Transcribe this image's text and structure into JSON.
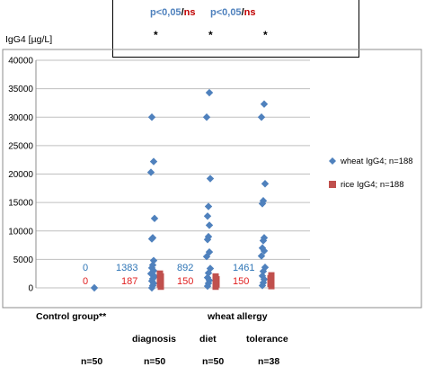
{
  "chart_data": {
    "type": "scatter",
    "ylabel": "IgG4 [µg/L]",
    "ylim": [
      0,
      40000
    ],
    "yticks": [
      0,
      5000,
      10000,
      15000,
      20000,
      25000,
      30000,
      35000,
      40000
    ],
    "grid": true,
    "legend_position": "right",
    "series": [
      {
        "name": "wheat IgG4; n=188",
        "color": "#4f81bd",
        "marker": "diamond",
        "points": [
          {
            "x": 1,
            "y": 0
          },
          {
            "x": 2,
            "y": 30000
          },
          {
            "x": 2,
            "y": 22200
          },
          {
            "x": 2,
            "y": 20300
          },
          {
            "x": 2,
            "y": 12200
          },
          {
            "x": 2,
            "y": 8800
          },
          {
            "x": 2,
            "y": 8600
          },
          {
            "x": 2,
            "y": 4800
          },
          {
            "x": 2,
            "y": 4000
          },
          {
            "x": 2,
            "y": 3500
          },
          {
            "x": 2,
            "y": 3000
          },
          {
            "x": 2,
            "y": 2500
          },
          {
            "x": 2,
            "y": 2000
          },
          {
            "x": 2,
            "y": 1600
          },
          {
            "x": 2,
            "y": 1200
          },
          {
            "x": 2,
            "y": 800
          },
          {
            "x": 2,
            "y": 400
          },
          {
            "x": 2,
            "y": 0
          },
          {
            "x": 3,
            "y": 34300
          },
          {
            "x": 3,
            "y": 30000
          },
          {
            "x": 3,
            "y": 19200
          },
          {
            "x": 3,
            "y": 14300
          },
          {
            "x": 3,
            "y": 12600
          },
          {
            "x": 3,
            "y": 11000
          },
          {
            "x": 3,
            "y": 9000
          },
          {
            "x": 3,
            "y": 8500
          },
          {
            "x": 3,
            "y": 6300
          },
          {
            "x": 3,
            "y": 5500
          },
          {
            "x": 3,
            "y": 3400
          },
          {
            "x": 3,
            "y": 2600
          },
          {
            "x": 3,
            "y": 1800
          },
          {
            "x": 3,
            "y": 1300
          },
          {
            "x": 3,
            "y": 800
          },
          {
            "x": 3,
            "y": 300
          },
          {
            "x": 4,
            "y": 32300
          },
          {
            "x": 4,
            "y": 30000
          },
          {
            "x": 4,
            "y": 18300
          },
          {
            "x": 4,
            "y": 15300
          },
          {
            "x": 4,
            "y": 14800
          },
          {
            "x": 4,
            "y": 8800
          },
          {
            "x": 4,
            "y": 8300
          },
          {
            "x": 4,
            "y": 7000
          },
          {
            "x": 4,
            "y": 6500
          },
          {
            "x": 4,
            "y": 5600
          },
          {
            "x": 4,
            "y": 3600
          },
          {
            "x": 4,
            "y": 2900
          },
          {
            "x": 4,
            "y": 2100
          },
          {
            "x": 4,
            "y": 1500
          },
          {
            "x": 4,
            "y": 900
          },
          {
            "x": 4,
            "y": 400
          }
        ]
      },
      {
        "name": "rice IgG4; n=188",
        "color": "#c0504d",
        "marker": "square",
        "points": [
          {
            "x": 2,
            "y": 2500
          },
          {
            "x": 2,
            "y": 2000
          },
          {
            "x": 2,
            "y": 1500
          },
          {
            "x": 2,
            "y": 1000
          },
          {
            "x": 2,
            "y": 600
          },
          {
            "x": 2,
            "y": 200
          },
          {
            "x": 3,
            "y": 2000
          },
          {
            "x": 3,
            "y": 1500
          },
          {
            "x": 3,
            "y": 1000
          },
          {
            "x": 3,
            "y": 600
          },
          {
            "x": 3,
            "y": 200
          },
          {
            "x": 4,
            "y": 2200
          },
          {
            "x": 4,
            "y": 1700
          },
          {
            "x": 4,
            "y": 1200
          },
          {
            "x": 4,
            "y": 700
          },
          {
            "x": 4,
            "y": 300
          }
        ]
      }
    ],
    "median_labels": [
      {
        "x": 1,
        "wheat": "0",
        "rice": "0"
      },
      {
        "x": 2,
        "wheat": "1383",
        "rice": "187"
      },
      {
        "x": 3,
        "wheat": "892",
        "rice": "150"
      },
      {
        "x": 4,
        "wheat": "1461",
        "rice": "150"
      }
    ],
    "significance": {
      "labels": [
        {
          "p": "p<0,05",
          "sep": "/",
          "ns": "ns"
        },
        {
          "p": "p<0,05",
          "sep": "/",
          "ns": "ns"
        }
      ],
      "stars": [
        "*",
        "*",
        "*"
      ]
    },
    "groups": {
      "control": "Control group**",
      "allergy": "wheat allergy",
      "subgroups": [
        "diagnosis",
        "diet",
        "tolerance"
      ],
      "n": [
        "n=50",
        "n=50",
        "n=50",
        "n=38"
      ]
    }
  }
}
